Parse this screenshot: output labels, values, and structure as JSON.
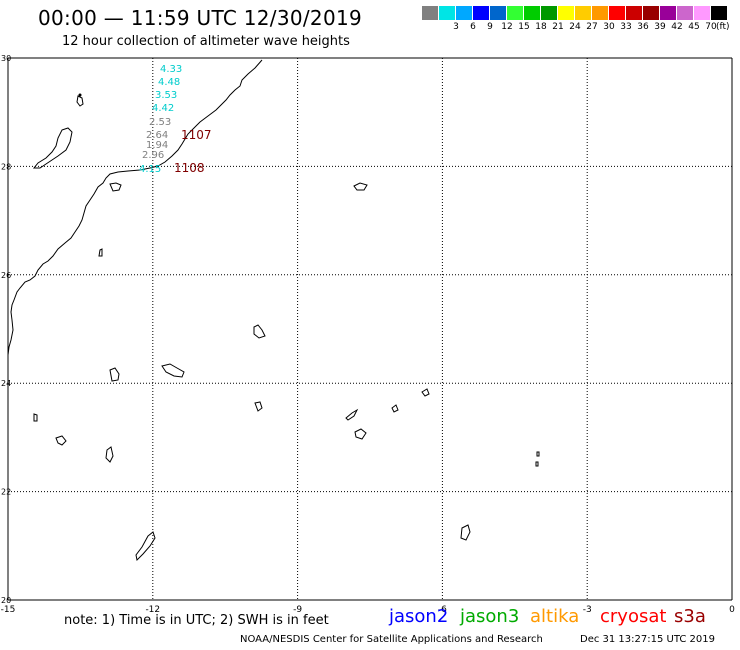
{
  "header": {
    "title": "00:00 — 11:59 UTC 12/30/2019",
    "subtitle": "12 hour collection of altimeter wave heights"
  },
  "legend": {
    "unit": "(ft)",
    "swatches": [
      {
        "color": "#808080",
        "label": ""
      },
      {
        "color": "#00e5e5",
        "label": "3"
      },
      {
        "color": "#00a8ff",
        "label": "6"
      },
      {
        "color": "#0000ff",
        "label": "9"
      },
      {
        "color": "#0066cc",
        "label": "12"
      },
      {
        "color": "#33ff33",
        "label": "15"
      },
      {
        "color": "#00cc00",
        "label": "18"
      },
      {
        "color": "#009900",
        "label": "21"
      },
      {
        "color": "#ffff00",
        "label": "24"
      },
      {
        "color": "#ffcc00",
        "label": "27"
      },
      {
        "color": "#ff9900",
        "label": "30"
      },
      {
        "color": "#ff0000",
        "label": "33"
      },
      {
        "color": "#cc0000",
        "label": "36"
      },
      {
        "color": "#990000",
        "label": "39"
      },
      {
        "color": "#990099",
        "label": "42"
      },
      {
        "color": "#cc66cc",
        "label": "45"
      },
      {
        "color": "#ff99ff",
        "label": "70"
      },
      {
        "color": "#000000",
        "label": ""
      }
    ]
  },
  "map": {
    "lon_range": [
      -15,
      0
    ],
    "lat_range": [
      20,
      30
    ],
    "lon_ticks": [
      "-15",
      "-12",
      "-9",
      "-6",
      "-3",
      "0"
    ],
    "lat_ticks": [
      "30",
      "28",
      "26",
      "24",
      "22",
      "20"
    ],
    "wave_labels": [
      {
        "text": "4.33",
        "color": "#00cccc"
      },
      {
        "text": "4.48",
        "color": "#00cccc"
      },
      {
        "text": "3.53",
        "color": "#00cccc"
      },
      {
        "text": "4.42",
        "color": "#00cccc"
      },
      {
        "text": "2.53",
        "color": "#808080"
      },
      {
        "text": "2.64",
        "color": "#808080"
      },
      {
        "text": "1.94",
        "color": "#808080"
      },
      {
        "text": "2.96",
        "color": "#808080"
      },
      {
        "text": "4.15",
        "color": "#00cccc"
      }
    ],
    "pass_labels": [
      {
        "text": "1107",
        "color": "#800000"
      },
      {
        "text": "1108",
        "color": "#800000"
      }
    ]
  },
  "footer": {
    "note": "note: 1) Time is in UTC; 2) SWH is in feet",
    "satellites": [
      {
        "name": "jason2",
        "color": "#0000ff"
      },
      {
        "name": "jason3",
        "color": "#00aa00"
      },
      {
        "name": "altika",
        "color": "#ff9900"
      },
      {
        "name": "cryosat",
        "color": "#ff0000"
      },
      {
        "name": "s3a",
        "color": "#990000"
      }
    ],
    "credit": "NOAA/NESDIS Center for Satellite Applications and Research",
    "timestamp": "Dec 31 13:27:15 UTC 2019"
  }
}
